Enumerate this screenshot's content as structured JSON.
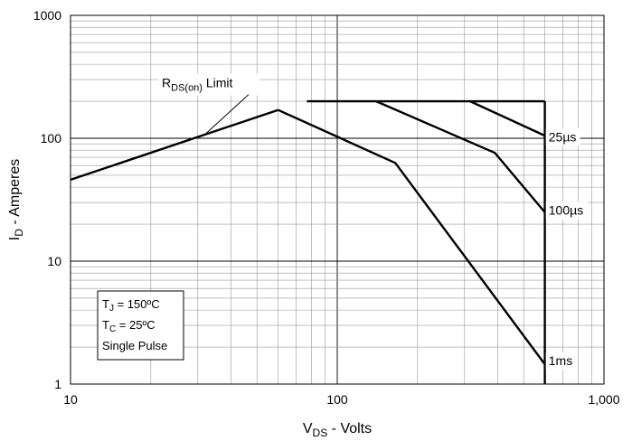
{
  "chart_data": {
    "type": "line",
    "x_scale": "log",
    "y_scale": "log",
    "xlim": [
      10,
      1000
    ],
    "ylim": [
      1,
      1000
    ],
    "grid": true,
    "x_ticks": [
      {
        "value": 10,
        "label": "10"
      },
      {
        "value": 100,
        "label": "100"
      },
      {
        "value": 1000,
        "label": "1,000"
      }
    ],
    "y_ticks": [
      {
        "value": 1,
        "label": "1"
      },
      {
        "value": 10,
        "label": "10"
      },
      {
        "value": 100,
        "label": "100"
      },
      {
        "value": 1000,
        "label": "1000"
      }
    ],
    "xlabel": {
      "main": "V",
      "sub": "DS",
      "rest": " - Volts"
    },
    "ylabel": {
      "main": "I",
      "sub": "D",
      "rest": " - Amperes"
    },
    "series": [
      {
        "id": "rdson",
        "points": [
          [
            10,
            46
          ],
          [
            60,
            170
          ]
        ]
      },
      {
        "id": "current-limit",
        "points": [
          [
            77,
            200
          ],
          [
            600,
            200
          ]
        ]
      },
      {
        "id": "voltage-limit",
        "points": [
          [
            600,
            200
          ],
          [
            600,
            1
          ]
        ]
      },
      {
        "id": "dc-1ms",
        "points": [
          [
            60,
            170
          ],
          [
            165,
            63
          ],
          [
            600,
            1.45
          ]
        ]
      },
      {
        "id": "pulse-100us",
        "points": [
          [
            140,
            200
          ],
          [
            390,
            76
          ],
          [
            600,
            25
          ]
        ]
      },
      {
        "id": "pulse-25us",
        "points": [
          [
            315,
            200
          ],
          [
            600,
            105
          ]
        ]
      }
    ],
    "annotations": {
      "rdson": {
        "main": "R",
        "sub": "DS(on)",
        "rest": " Limit",
        "x": 22,
        "y": 260,
        "target": [
          32,
          108
        ]
      },
      "labels": [
        {
          "text": "25µs",
          "x": 620,
          "y": 103
        },
        {
          "text": "100µs",
          "x": 620,
          "y": 26
        },
        {
          "text": "1ms",
          "x": 620,
          "y": 1.55
        }
      ]
    },
    "conditions": [
      {
        "main": "T",
        "sub": "J",
        "rest": " = 150ºC"
      },
      {
        "main": "T",
        "sub": "C",
        "rest": " = 25ºC"
      },
      {
        "main": "Single Pulse",
        "sub": "",
        "rest": ""
      }
    ]
  }
}
